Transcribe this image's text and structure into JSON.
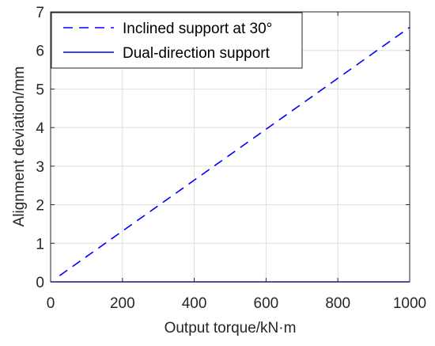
{
  "chart_data": {
    "type": "line",
    "title": "",
    "xlabel": "Output torque/kN·m",
    "ylabel": "Alignment deviation/mm",
    "xlim": [
      0,
      1000
    ],
    "ylim": [
      0,
      7
    ],
    "xticks": [
      "0",
      "200",
      "400",
      "600",
      "800",
      "1000"
    ],
    "yticks": [
      "0",
      "1",
      "2",
      "3",
      "4",
      "5",
      "6",
      "7"
    ],
    "grid": true,
    "legend_position": "top-left",
    "series": [
      {
        "name": "Inclined support at 30°",
        "style": "dashed",
        "color": "#0000ff",
        "x": [
          25,
          1000
        ],
        "y": [
          0.16,
          6.6
        ]
      },
      {
        "name": "Dual-direction support",
        "style": "solid",
        "color": "#0000ff",
        "x": [
          0,
          1000
        ],
        "y": [
          0,
          0
        ]
      }
    ]
  }
}
